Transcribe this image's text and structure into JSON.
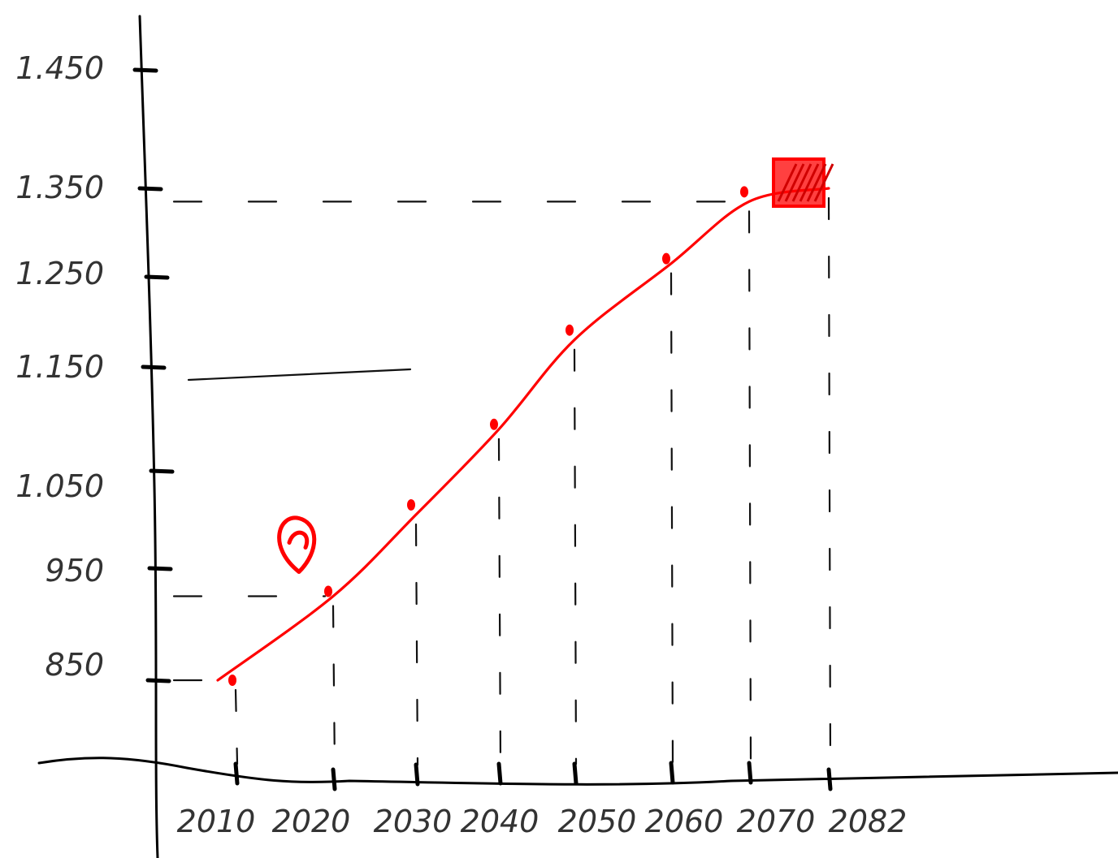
{
  "chart_data": {
    "type": "line",
    "title": "",
    "xlabel": "",
    "ylabel": "",
    "x_ticks": [
      "2010",
      "2020",
      "2030",
      "2040",
      "2050",
      "2060",
      "2070",
      "2082"
    ],
    "y_ticks": [
      "850",
      "950",
      "1.050",
      "1.150",
      "1.250",
      "1.350",
      "1.450"
    ],
    "ylim": [
      770,
      1500
    ],
    "grid": false,
    "style": "hand-drawn sketch",
    "colors": {
      "axis": "#000000",
      "series": "#ff0000",
      "text": "#333333"
    },
    "series": [
      {
        "points": [
          {
            "x": "2010",
            "y": 850
          },
          {
            "x": "2020",
            "y": 925
          },
          {
            "x": "2030",
            "y": 1005
          },
          {
            "x": "2040",
            "y": 1090
          },
          {
            "x": "2050",
            "y": 1180
          },
          {
            "x": "2060",
            "y": 1265
          },
          {
            "x": "2070",
            "y": 1335
          },
          {
            "x": "2082",
            "y": 1350
          }
        ]
      }
    ],
    "annotations": {
      "marker_2020": "circled point",
      "marker_2082": "filled square"
    }
  }
}
